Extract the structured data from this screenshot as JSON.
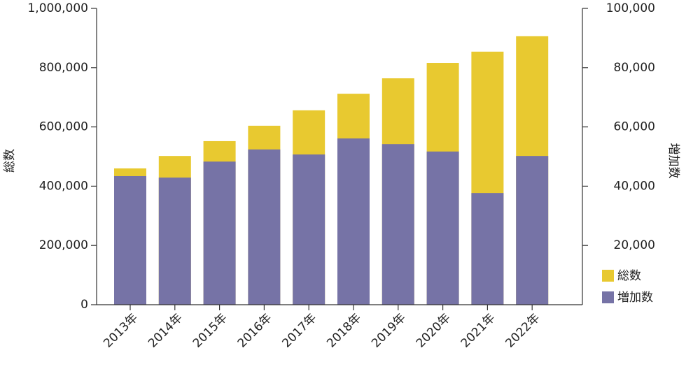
{
  "chart_data": {
    "type": "bar",
    "categories": [
      "2013年",
      "2014年",
      "2015年",
      "2016年",
      "2017年",
      "2018年",
      "2019年",
      "2020年",
      "2021年",
      "2022年"
    ],
    "series": [
      {
        "name": "総数",
        "color": "#e8c930",
        "values": [
          460000,
          502000,
          552000,
          604000,
          656000,
          712000,
          764000,
          816000,
          854000,
          906000
        ]
      },
      {
        "name": "増加数",
        "color": "#7673a6",
        "axis": "y2",
        "values": [
          43400,
          42900,
          48300,
          52400,
          50700,
          56100,
          54200,
          51700,
          37700,
          50200
        ]
      }
    ],
    "y_label": "総数",
    "y2_label": "増加数",
    "ylim": [
      0,
      1000000
    ],
    "yticks": [
      0,
      {
        "value": 200000,
        "label": "200,000"
      },
      {
        "value": 400000,
        "label": "400,000"
      },
      {
        "value": 600000,
        "label": "600,000"
      },
      {
        "value": 800000,
        "label": "800,000"
      },
      {
        "value": 1000000,
        "label": "1,000,000"
      }
    ],
    "y2lim": [
      0,
      100000
    ],
    "y2ticks": [
      {
        "value": 20000,
        "label": "20,000"
      },
      {
        "value": 40000,
        "label": "40,000"
      },
      {
        "value": 60000,
        "label": "60,000"
      },
      {
        "value": 80000,
        "label": "80,000"
      },
      {
        "value": 100000,
        "label": "100,000"
      }
    ],
    "legend": "bottom-right",
    "grid": false
  }
}
